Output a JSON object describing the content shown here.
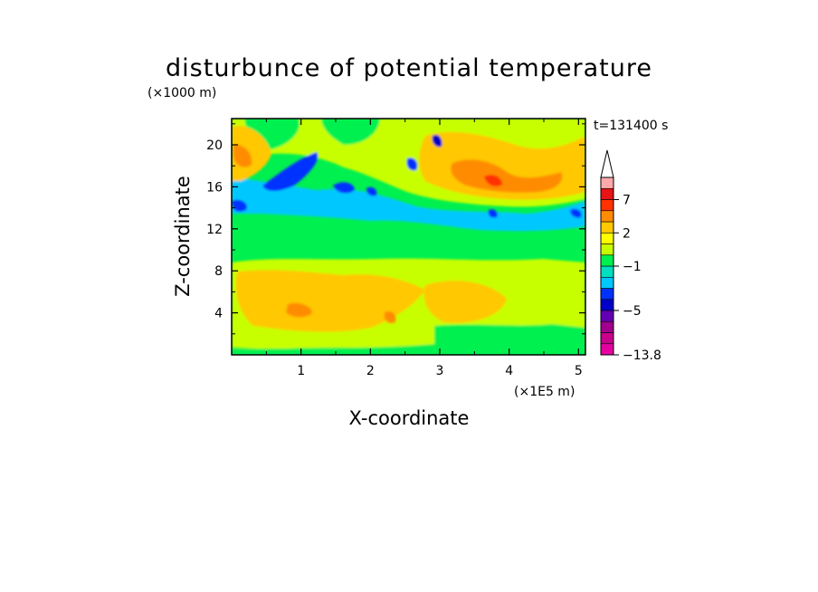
{
  "chart_data": {
    "type": "heatmap",
    "title": "disturbunce of potential temperature",
    "xlabel": "X-coordinate",
    "ylabel": "Z-coordinate",
    "x_unit": "(×1E5 m)",
    "y_unit": "(×1000 m)",
    "time_label": "t=131400 s",
    "xlim": [
      0,
      5.1
    ],
    "ylim": [
      0,
      22.5
    ],
    "xticks": [
      "1",
      "2",
      "3",
      "4",
      "5"
    ],
    "xtick_values": [
      1,
      2,
      3,
      4,
      5
    ],
    "yticks": [
      "4",
      "8",
      "12",
      "16",
      "20"
    ],
    "ytick_values": [
      4,
      8,
      12,
      16,
      20
    ],
    "colorbar": {
      "levels": [
        -13.8,
        -11,
        -9,
        -7,
        -5,
        -4,
        -3,
        -2,
        -1,
        0,
        1,
        2,
        3,
        5,
        7,
        9,
        11
      ],
      "labels": [
        "7",
        "2",
        "−1",
        "−5",
        "−13.8"
      ],
      "label_values": [
        7,
        2,
        -1,
        -5,
        -13.8
      ],
      "colors": [
        "#e600a0",
        "#c8008c",
        "#a0008c",
        "#6400b4",
        "#0000c8",
        "#0032ff",
        "#00c8ff",
        "#00e0c0",
        "#00f050",
        "#c8ff00",
        "#ffff00",
        "#ffc800",
        "#ff8c00",
        "#ff3200",
        "#e61414",
        "#ffaaaa"
      ],
      "extend": "max"
    }
  }
}
